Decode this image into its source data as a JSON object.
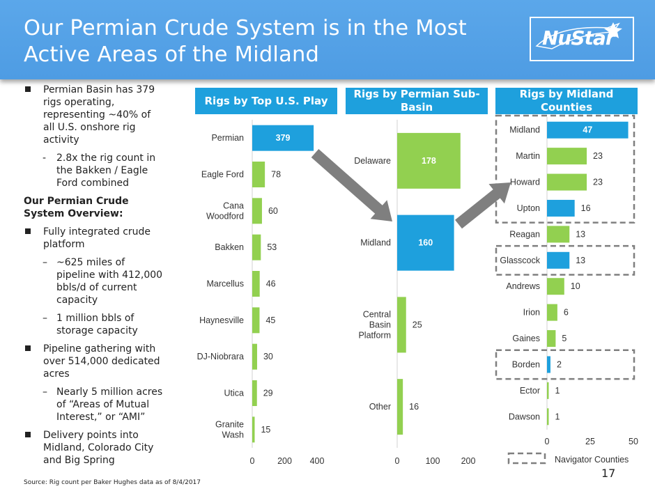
{
  "header": {
    "title": "Our Permian Crude System is in the Most Active Areas of the Midland",
    "logo_text": "NuStar"
  },
  "bullets": {
    "b1": "Permian Basin has 379 rigs operating, representing ~40% of all U.S. onshore rig activity",
    "b1_sub": "2.8x the rig count in the Bakken / Eagle Ford combined",
    "overview_title": "Our Permian Crude System Overview:",
    "b2": "Fully integrated crude platform",
    "b2_sub1": "~625 miles of pipeline with 412,000 bbls/d of current capacity",
    "b2_sub2": "1 million bbls of storage capacity",
    "b3": "Pipeline gathering with over 514,000 dedicated acres",
    "b3_sub": "Nearly 5 million acres of “Areas of Mutual Interest,” or “AMI”",
    "b4": "Delivery points into Midland, Colorado City and Big Spring"
  },
  "footer": {
    "source": "Source: Rig count per Baker Hughes  data as of 8/4/2017",
    "page": "17"
  },
  "colors": {
    "green": "#92d050",
    "blue": "#1ea0dd",
    "arrow": "#7f7f7f"
  },
  "chart_data": [
    {
      "type": "bar",
      "orientation": "horizontal",
      "title": "Rigs by Top U.S. Play",
      "categories": [
        "Permian",
        "Eagle Ford",
        "Cana Woodford",
        "Bakken",
        "Marcellus",
        "Haynesville",
        "DJ-Niobrara",
        "Utica",
        "Granite Wash"
      ],
      "values": [
        379,
        78,
        60,
        53,
        46,
        45,
        30,
        29,
        15
      ],
      "highlight": [
        true,
        false,
        false,
        false,
        false,
        false,
        false,
        false,
        false
      ],
      "xlim": [
        0,
        400
      ],
      "xticks": [
        "0",
        "200",
        "400"
      ]
    },
    {
      "type": "bar",
      "orientation": "horizontal",
      "title": "Rigs by Permian Sub-Basin",
      "categories": [
        "Delaware",
        "Midland",
        "Central Basin Platform",
        "Other"
      ],
      "values": [
        178,
        160,
        25,
        16
      ],
      "highlight": [
        false,
        true,
        false,
        false
      ],
      "xlim": [
        0,
        200
      ],
      "xticks": [
        "0",
        "100",
        "200"
      ]
    },
    {
      "type": "bar",
      "orientation": "horizontal",
      "title": "Rigs by Midland Counties",
      "categories": [
        "Midland",
        "Martin",
        "Howard",
        "Upton",
        "Reagan",
        "Glasscock",
        "Andrews",
        "Irion",
        "Gaines",
        "Borden",
        "Ector",
        "Dawson"
      ],
      "values": [
        47,
        23,
        23,
        16,
        13,
        13,
        10,
        6,
        5,
        2,
        1,
        1
      ],
      "highlight": [
        true,
        false,
        false,
        true,
        false,
        true,
        false,
        false,
        false,
        true,
        false,
        false
      ],
      "xlim": [
        0,
        50
      ],
      "xticks": [
        "0",
        "25",
        "50"
      ],
      "legend": "Navigator Counties"
    }
  ]
}
